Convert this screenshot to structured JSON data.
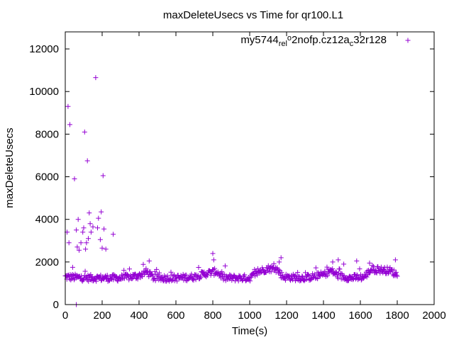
{
  "chart_data": {
    "type": "scatter",
    "title": "maxDeleteUsecs vs Time for qr100.L1",
    "xlabel": "Time(s)",
    "ylabel": "maxDeleteUsecs",
    "xlim": [
      0,
      2000
    ],
    "ylim": [
      0,
      12800
    ],
    "xticks": [
      0,
      200,
      400,
      600,
      800,
      1000,
      1200,
      1400,
      1600,
      1800,
      2000
    ],
    "yticks": [
      0,
      2000,
      4000,
      6000,
      8000,
      10000,
      12000
    ],
    "grid": false,
    "legend_position": "top-right",
    "color": "#9400d3",
    "marker": "+",
    "series": [
      {
        "name": "my5744_rel_o2nofp.cz12a_c32r128",
        "name_parts": [
          "my5744",
          "rel",
          "o",
          "2nofp.cz12a",
          "c",
          "32r128"
        ],
        "values_note": "dense band of points sampled roughly every 5s from 0 to 1800s",
        "outliers": [
          [
            10,
            3400
          ],
          [
            15,
            9300
          ],
          [
            20,
            2900
          ],
          [
            25,
            8450
          ],
          [
            40,
            1750
          ],
          [
            50,
            5900
          ],
          [
            60,
            3500
          ],
          [
            65,
            2700
          ],
          [
            70,
            4000
          ],
          [
            75,
            2550
          ],
          [
            85,
            2900
          ],
          [
            95,
            3400
          ],
          [
            100,
            3600
          ],
          [
            105,
            8100
          ],
          [
            110,
            2600
          ],
          [
            115,
            2900
          ],
          [
            120,
            6750
          ],
          [
            125,
            3100
          ],
          [
            130,
            4300
          ],
          [
            135,
            3800
          ],
          [
            140,
            3400
          ],
          [
            150,
            3650
          ],
          [
            165,
            10650
          ],
          [
            175,
            3600
          ],
          [
            180,
            4050
          ],
          [
            190,
            3050
          ],
          [
            195,
            4350
          ],
          [
            200,
            2650
          ],
          [
            205,
            6050
          ],
          [
            210,
            3550
          ],
          [
            220,
            2600
          ],
          [
            260,
            3300
          ],
          [
            60,
            0
          ],
          [
            455,
            2050
          ],
          [
            800,
            2400
          ],
          [
            805,
            2100
          ],
          [
            1160,
            2000
          ],
          [
            1170,
            2200
          ],
          [
            1450,
            2000
          ],
          [
            1480,
            2100
          ],
          [
            1510,
            1900
          ],
          [
            1580,
            2050
          ],
          [
            1650,
            1950
          ],
          [
            1790,
            2100
          ]
        ],
        "band": [
          [
            0,
            1300
          ],
          [
            100,
            1250
          ],
          [
            200,
            1250
          ],
          [
            300,
            1250
          ],
          [
            400,
            1350
          ],
          [
            440,
            1550
          ],
          [
            480,
            1250
          ],
          [
            600,
            1250
          ],
          [
            700,
            1300
          ],
          [
            760,
            1450
          ],
          [
            820,
            1550
          ],
          [
            860,
            1250
          ],
          [
            1000,
            1250
          ],
          [
            1050,
            1550
          ],
          [
            1100,
            1700
          ],
          [
            1150,
            1650
          ],
          [
            1180,
            1300
          ],
          [
            1300,
            1250
          ],
          [
            1400,
            1400
          ],
          [
            1440,
            1600
          ],
          [
            1480,
            1350
          ],
          [
            1550,
            1250
          ],
          [
            1620,
            1300
          ],
          [
            1660,
            1650
          ],
          [
            1760,
            1600
          ],
          [
            1800,
            1400
          ]
        ]
      }
    ]
  }
}
